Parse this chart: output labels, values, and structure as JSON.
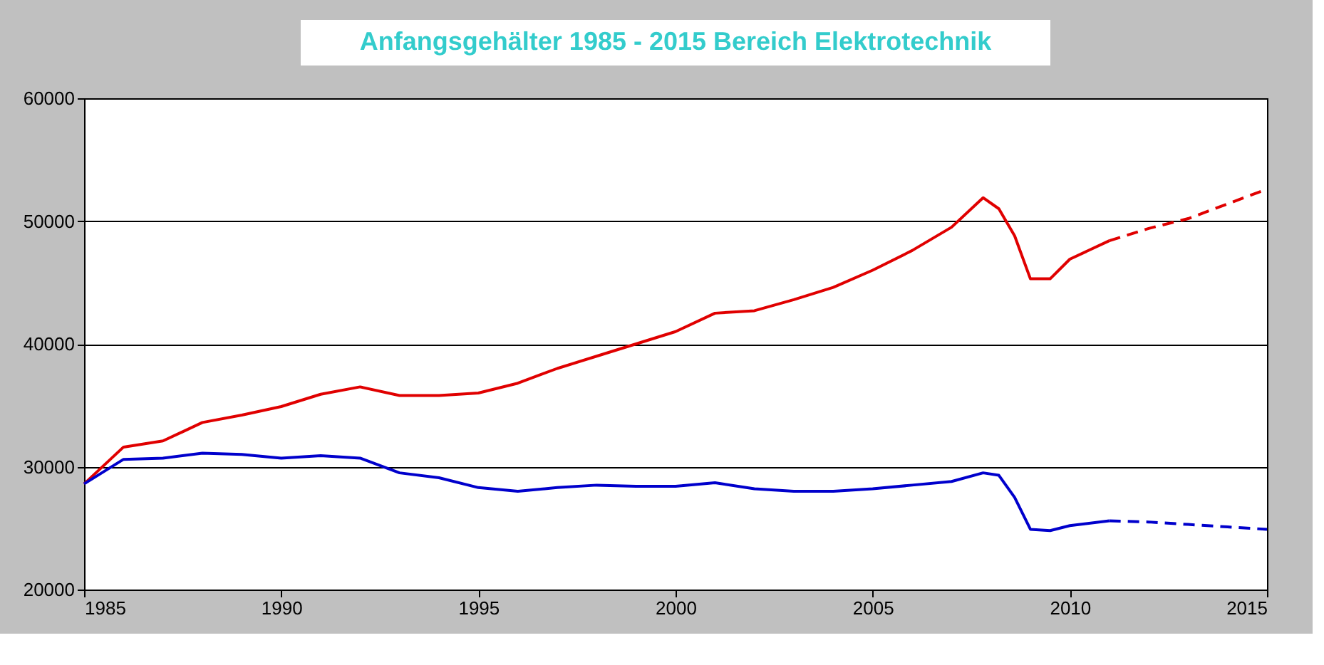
{
  "chart_data": {
    "type": "line",
    "title": "Anfangsgehälter 1985 - 2015 Bereich Elektrotechnik",
    "xlim": [
      1985,
      2015
    ],
    "xticks": [
      1985,
      1990,
      1995,
      2000,
      2005,
      2010,
      2015
    ],
    "ylim": [
      20000,
      60000
    ],
    "yticks": [
      20000,
      30000,
      40000,
      50000,
      60000
    ],
    "grid": "y",
    "series": [
      {
        "color": "#e00000",
        "line_style": "solid",
        "x": [
          1985,
          1986,
          1987,
          1988,
          1989,
          1990,
          1991,
          1992,
          1993,
          1994,
          1995,
          1996,
          1997,
          1998,
          1999,
          2000,
          2001,
          2002,
          2003,
          2004,
          2005,
          2006,
          2007,
          2007.8,
          2008.2,
          2008.6,
          2009,
          2009.5,
          2010,
          2011
        ],
        "values": [
          28600,
          31600,
          32100,
          33600,
          34200,
          34900,
          35900,
          36500,
          35800,
          35800,
          36000,
          36800,
          38000,
          39000,
          40000,
          41000,
          42500,
          42700,
          43600,
          44600,
          46000,
          47600,
          49500,
          51900,
          51000,
          48800,
          45300,
          45300,
          46900,
          48400
        ]
      },
      {
        "color": "#e00000",
        "line_style": "dashed",
        "x": [
          2011,
          2012,
          2013,
          2014,
          2015
        ],
        "values": [
          48400,
          49400,
          50200,
          51400,
          52600
        ]
      },
      {
        "color": "#0000cc",
        "line_style": "solid",
        "x": [
          1985,
          1986,
          1987,
          1988,
          1989,
          1990,
          1991,
          1992,
          1993,
          1994,
          1995,
          1996,
          1997,
          1998,
          1999,
          2000,
          2001,
          2002,
          2003,
          2004,
          2005,
          2006,
          2007,
          2007.8,
          2008.2,
          2008.6,
          2009,
          2009.5,
          2010,
          2011
        ],
        "values": [
          28600,
          30600,
          30700,
          31100,
          31000,
          30700,
          30900,
          30700,
          29500,
          29100,
          28300,
          28000,
          28300,
          28500,
          28400,
          28400,
          28700,
          28200,
          28000,
          28000,
          28200,
          28500,
          28800,
          29500,
          29300,
          27500,
          24900,
          24800,
          25200,
          25600
        ]
      },
      {
        "color": "#0000cc",
        "line_style": "dashed",
        "x": [
          2011,
          2012,
          2013,
          2014,
          2015
        ],
        "values": [
          25600,
          25500,
          25300,
          25100,
          24900
        ]
      }
    ]
  }
}
